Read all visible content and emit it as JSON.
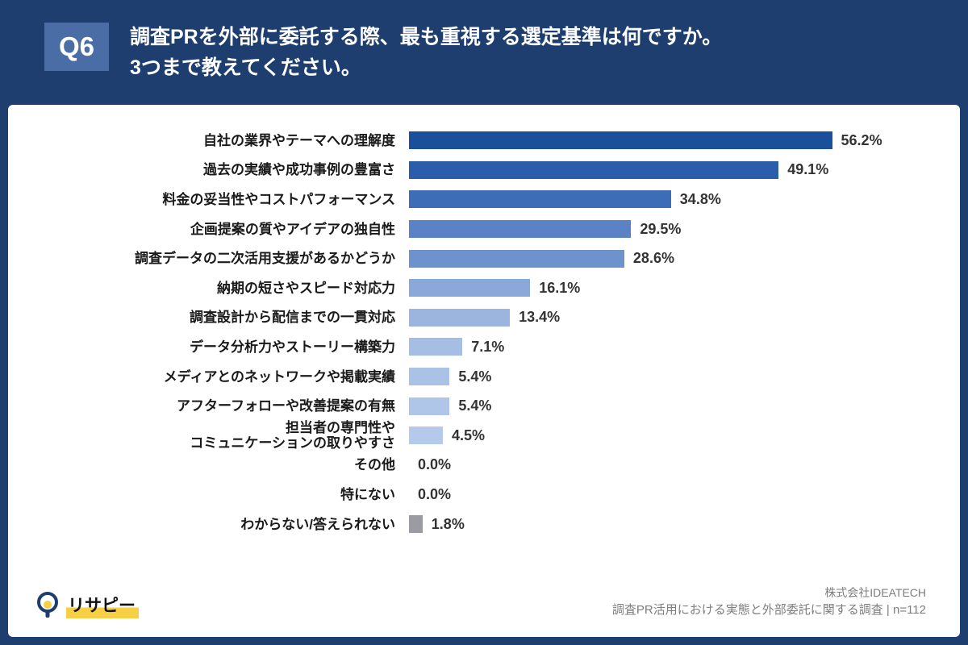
{
  "header": {
    "badge": "Q6",
    "title_line1": "調査PRを外部に委託する際、最も重視する選定基準は何ですか。",
    "title_line2": "3つまで教えてください。"
  },
  "chart_data": {
    "type": "bar",
    "orientation": "horizontal",
    "title": "調査PRを外部に委託する際、最も重視する選定基準は何ですか。3つまで教えてください。",
    "xlabel": "",
    "ylabel": "",
    "xlim": [
      0,
      60
    ],
    "grid": false,
    "legend": "none",
    "categories": [
      "自社の業界やテーマへの理解度",
      "過去の実績や成功事例の豊富さ",
      "料金の妥当性やコストパフォーマンス",
      "企画提案の質やアイデアの独自性",
      "調査データの二次活用支援があるかどうか",
      "納期の短さやスピード対応力",
      "調査設計から配信までの一貫対応",
      "データ分析力やストーリー構築力",
      "メディアとのネットワークや掲載実績",
      "アフターフォローや改善提案の有無",
      "担当者の専門性や\nコミュニケーションの取りやすさ",
      "その他",
      "特にない",
      "わからない/答えられない"
    ],
    "values": [
      56.2,
      49.1,
      34.8,
      29.5,
      28.6,
      16.1,
      13.4,
      7.1,
      5.4,
      5.4,
      4.5,
      0.0,
      0.0,
      1.8
    ],
    "value_labels": [
      "56.2%",
      "49.1%",
      "34.8%",
      "29.5%",
      "28.6%",
      "16.1%",
      "13.4%",
      "7.1%",
      "5.4%",
      "5.4%",
      "4.5%",
      "0.0%",
      "0.0%",
      "1.8%"
    ],
    "bar_colors": [
      "#1a4f9c",
      "#2c5dab",
      "#3e6db8",
      "#5a82c4",
      "#6d92cc",
      "#8aa8d9",
      "#9cb5e0",
      "#a6bde4",
      "#abc2e7",
      "#b0c6e9",
      "#b5caeb",
      "#b5caeb",
      "#b5caeb",
      "#9b9ba3"
    ]
  },
  "footer": {
    "logo_text": "リサピー",
    "company": "株式会社IDEATECH",
    "survey": "調査PR活用における実態と外部委託に関する調査 | n=112"
  },
  "colors": {
    "background": "#1d3e6e",
    "badge": "#4a6da6",
    "accent_yellow": "#f7cf45",
    "na_bar": "#9b9ba3"
  }
}
